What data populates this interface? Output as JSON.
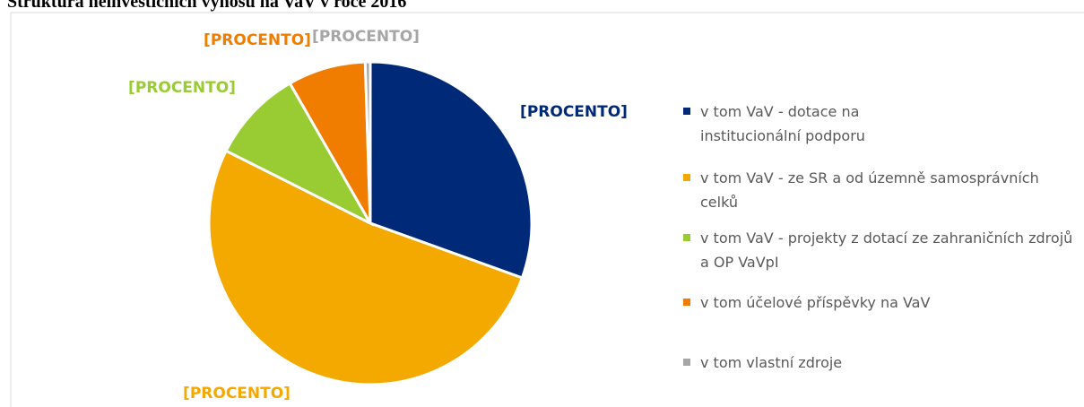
{
  "chart_data": {
    "type": "pie",
    "title": "Struktura neinvestičních výnosů na VaV v roce 2016",
    "categories": [
      "v tom VaV - dotace na institucionální podporu",
      "v tom VaV - ze SR a od územně samosprávních celků",
      "v tom VaV - projekty z dotací ze zahraničních zdrojů a OP VaVpI",
      "v tom účelové příspěvky na VaV",
      "v tom vlastní zdroje"
    ],
    "values": [
      30.5,
      51.9,
      9.3,
      7.8,
      0.5
    ],
    "value_labels": [
      "[PROCENTO]",
      "[PROCENTO]",
      "[PROCENTO]",
      "[PROCENTO]",
      "[PROCENTO]"
    ],
    "colors": [
      "#002a78",
      "#f4a900",
      "#99cc33",
      "#f07d00",
      "#a6a6a6"
    ],
    "legend": "right"
  }
}
